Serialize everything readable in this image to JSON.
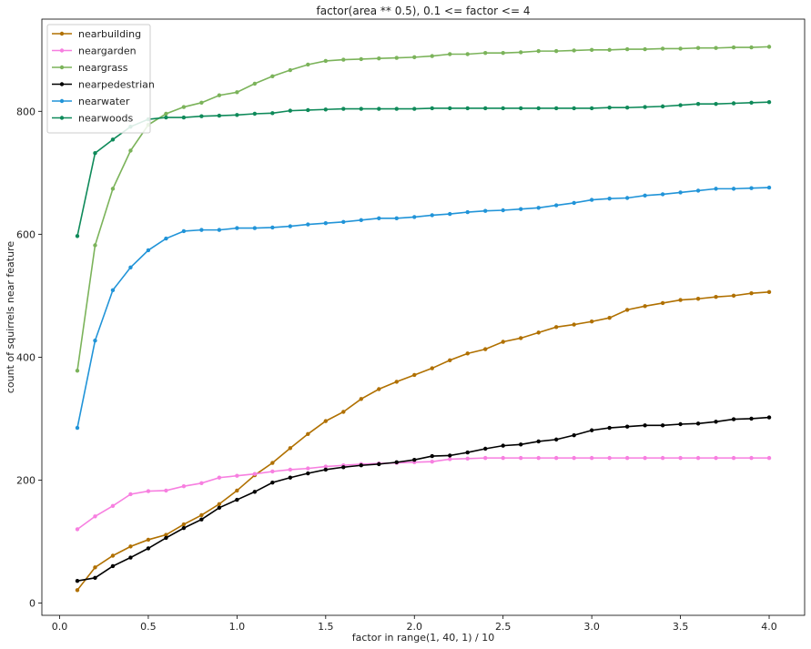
{
  "chart_data": {
    "type": "line",
    "title": "factor(area ** 0.5), 0.1 <= factor <= 4",
    "xlabel": "factor in range(1, 40, 1) / 10",
    "ylabel": "count of squirrels near feature",
    "xlim": [
      -0.1,
      4.2
    ],
    "ylim": [
      -20,
      950
    ],
    "xticks": [
      0.0,
      0.5,
      1.0,
      1.5,
      2.0,
      2.5,
      3.0,
      3.5,
      4.0
    ],
    "xtick_labels": [
      "0.0",
      "0.5",
      "1.0",
      "1.5",
      "2.0",
      "2.5",
      "3.0",
      "3.5",
      "4.0"
    ],
    "yticks": [
      0,
      200,
      400,
      600,
      800
    ],
    "ytick_labels": [
      "0",
      "200",
      "400",
      "600",
      "800"
    ],
    "grid": false,
    "legend_position": "top-left",
    "x": [
      0.1,
      0.2,
      0.3,
      0.4,
      0.5,
      0.6,
      0.7,
      0.8,
      0.9,
      1.0,
      1.1,
      1.2,
      1.3,
      1.4,
      1.5,
      1.6,
      1.7,
      1.8,
      1.9,
      2.0,
      2.1,
      2.2,
      2.3,
      2.4,
      2.5,
      2.6,
      2.7,
      2.8,
      2.9,
      3.0,
      3.1,
      3.2,
      3.3,
      3.4,
      3.5,
      3.6,
      3.7,
      3.8,
      3.9,
      4.0
    ],
    "series": [
      {
        "name": "nearbuilding",
        "color": "#b07000",
        "values": [
          21,
          58,
          77,
          92,
          103,
          111,
          128,
          143,
          161,
          183,
          208,
          228,
          252,
          275,
          296,
          311,
          332,
          348,
          360,
          371,
          382,
          395,
          406,
          413,
          425,
          431,
          440,
          449,
          453,
          458,
          464,
          477,
          483,
          488,
          493,
          495,
          498,
          500,
          504,
          506
        ]
      },
      {
        "name": "neargarden",
        "color": "#f77fe0",
        "values": [
          120,
          141,
          158,
          177,
          182,
          183,
          190,
          195,
          204,
          207,
          210,
          214,
          217,
          219,
          222,
          224,
          226,
          227,
          228,
          229,
          230,
          234,
          235,
          236,
          236,
          236,
          236,
          236,
          236,
          236,
          236,
          236,
          236,
          236,
          236,
          236,
          236,
          236,
          236,
          236
        ]
      },
      {
        "name": "neargrass",
        "color": "#7bb35a",
        "values": [
          378,
          582,
          674,
          736,
          778,
          796,
          807,
          814,
          826,
          831,
          845,
          857,
          867,
          876,
          882,
          884,
          885,
          886,
          887,
          888,
          890,
          893,
          893,
          895,
          895,
          896,
          898,
          898,
          899,
          900,
          900,
          901,
          901,
          902,
          902,
          903,
          903,
          904,
          904,
          905
        ]
      },
      {
        "name": "nearpedestrian",
        "color": "#000000",
        "values": [
          36,
          41,
          60,
          74,
          89,
          106,
          122,
          136,
          155,
          168,
          181,
          196,
          204,
          211,
          217,
          221,
          224,
          226,
          229,
          233,
          239,
          240,
          245,
          251,
          256,
          258,
          263,
          266,
          273,
          281,
          285,
          287,
          289,
          289,
          291,
          292,
          295,
          299,
          300,
          302
        ]
      },
      {
        "name": "nearwater",
        "color": "#2194d8",
        "values": [
          285,
          427,
          509,
          546,
          574,
          593,
          605,
          607,
          607,
          610,
          610,
          611,
          613,
          616,
          618,
          620,
          623,
          626,
          626,
          628,
          631,
          633,
          636,
          638,
          639,
          641,
          643,
          647,
          651,
          656,
          658,
          659,
          663,
          665,
          668,
          671,
          674,
          674,
          675,
          676
        ]
      },
      {
        "name": "nearwoods",
        "color": "#0f8a5a",
        "values": [
          597,
          732,
          754,
          775,
          787,
          790,
          790,
          792,
          793,
          794,
          796,
          797,
          801,
          802,
          803,
          804,
          804,
          804,
          804,
          804,
          805,
          805,
          805,
          805,
          805,
          805,
          805,
          805,
          805,
          805,
          806,
          806,
          807,
          808,
          810,
          812,
          812,
          813,
          814,
          815
        ]
      }
    ]
  }
}
